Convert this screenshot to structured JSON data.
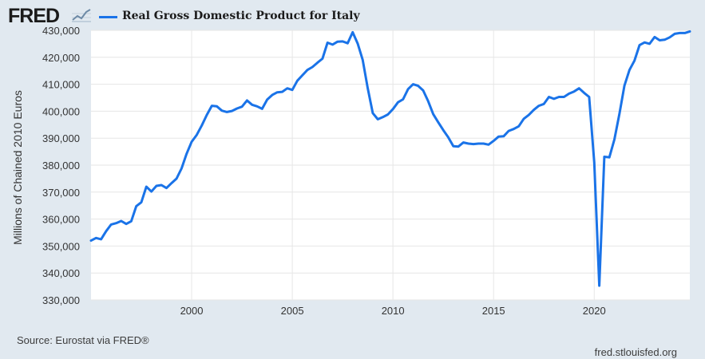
{
  "header": {
    "logo_text": "FRED",
    "logo_icon": "trend-chart-icon",
    "series_title": "Real Gross Domestic Product for Italy",
    "series_color": "#1a73e8"
  },
  "footer": {
    "source": "Source: Eurostat via FRED®",
    "website": "fred.stlouisfed.org"
  },
  "chart_data": {
    "type": "line",
    "title": "Real Gross Domestic Product for Italy",
    "ylabel": "Millions of Chained 2010 Euros",
    "xlabel": "",
    "xlim": [
      1995.0,
      2024.75
    ],
    "ylim": [
      330000,
      430000
    ],
    "yticks": [
      330000,
      340000,
      350000,
      360000,
      370000,
      380000,
      390000,
      400000,
      410000,
      420000,
      430000
    ],
    "ytick_labels": [
      "330,000",
      "340,000",
      "350,000",
      "360,000",
      "370,000",
      "380,000",
      "390,000",
      "400,000",
      "410,000",
      "420,000",
      "430,000"
    ],
    "xticks": [
      2000,
      2005,
      2010,
      2015,
      2020
    ],
    "xtick_labels": [
      "2000",
      "2005",
      "2010",
      "2015",
      "2020"
    ],
    "grid": true,
    "legend": "top-left",
    "series": [
      {
        "name": "Real Gross Domestic Product for Italy",
        "color": "#1a73e8",
        "x": [
          1995.0,
          1995.25,
          1995.5,
          1995.75,
          1996.0,
          1996.25,
          1996.5,
          1996.75,
          1997.0,
          1997.25,
          1997.5,
          1997.75,
          1998.0,
          1998.25,
          1998.5,
          1998.75,
          1999.0,
          1999.25,
          1999.5,
          1999.75,
          2000.0,
          2000.25,
          2000.5,
          2000.75,
          2001.0,
          2001.25,
          2001.5,
          2001.75,
          2002.0,
          2002.25,
          2002.5,
          2002.75,
          2003.0,
          2003.25,
          2003.5,
          2003.75,
          2004.0,
          2004.25,
          2004.5,
          2004.75,
          2005.0,
          2005.25,
          2005.5,
          2005.75,
          2006.0,
          2006.25,
          2006.5,
          2006.75,
          2007.0,
          2007.25,
          2007.5,
          2007.75,
          2008.0,
          2008.25,
          2008.5,
          2008.75,
          2009.0,
          2009.25,
          2009.5,
          2009.75,
          2010.0,
          2010.25,
          2010.5,
          2010.75,
          2011.0,
          2011.25,
          2011.5,
          2011.75,
          2012.0,
          2012.25,
          2012.5,
          2012.75,
          2013.0,
          2013.25,
          2013.5,
          2013.75,
          2014.0,
          2014.25,
          2014.5,
          2014.75,
          2015.0,
          2015.25,
          2015.5,
          2015.75,
          2016.0,
          2016.25,
          2016.5,
          2016.75,
          2017.0,
          2017.25,
          2017.5,
          2017.75,
          2018.0,
          2018.25,
          2018.5,
          2018.75,
          2019.0,
          2019.25,
          2019.5,
          2019.75,
          2020.0,
          2020.25,
          2020.5,
          2020.75,
          2021.0,
          2021.25,
          2021.5,
          2021.75,
          2022.0,
          2022.25,
          2022.5,
          2022.75,
          2023.0,
          2023.25,
          2023.5,
          2023.75,
          2024.0,
          2024.25,
          2024.5,
          2024.75
        ],
        "values": [
          352000,
          353000,
          352500,
          355500,
          358000,
          358500,
          359300,
          358200,
          359200,
          364800,
          366200,
          372000,
          370200,
          372300,
          372600,
          371500,
          373300,
          375000,
          378800,
          384200,
          388700,
          391200,
          394700,
          398600,
          402000,
          401800,
          400200,
          399700,
          400100,
          401000,
          401700,
          404000,
          402400,
          401800,
          400900,
          404300,
          406000,
          407000,
          407200,
          408500,
          407900,
          411300,
          413300,
          415300,
          416400,
          418000,
          419500,
          425400,
          424700,
          425800,
          425900,
          425200,
          429300,
          425100,
          419000,
          408500,
          399300,
          397000,
          397800,
          398800,
          400800,
          403300,
          404400,
          408200,
          410000,
          409400,
          407700,
          403700,
          398900,
          395900,
          393000,
          390300,
          387000,
          386900,
          388400,
          388000,
          387800,
          388000,
          388000,
          387600,
          389000,
          390600,
          390700,
          392700,
          393400,
          394400,
          397200,
          398600,
          400500,
          402000,
          402700,
          405300,
          404600,
          405300,
          405300,
          406500,
          407300,
          408500,
          406800,
          405300,
          381000,
          335300,
          383100,
          382900,
          389500,
          399000,
          409500,
          415300,
          418800,
          424500,
          425500,
          425000,
          427500,
          426300,
          426500,
          427400,
          428700,
          429000,
          429000,
          429600
        ]
      }
    ]
  }
}
